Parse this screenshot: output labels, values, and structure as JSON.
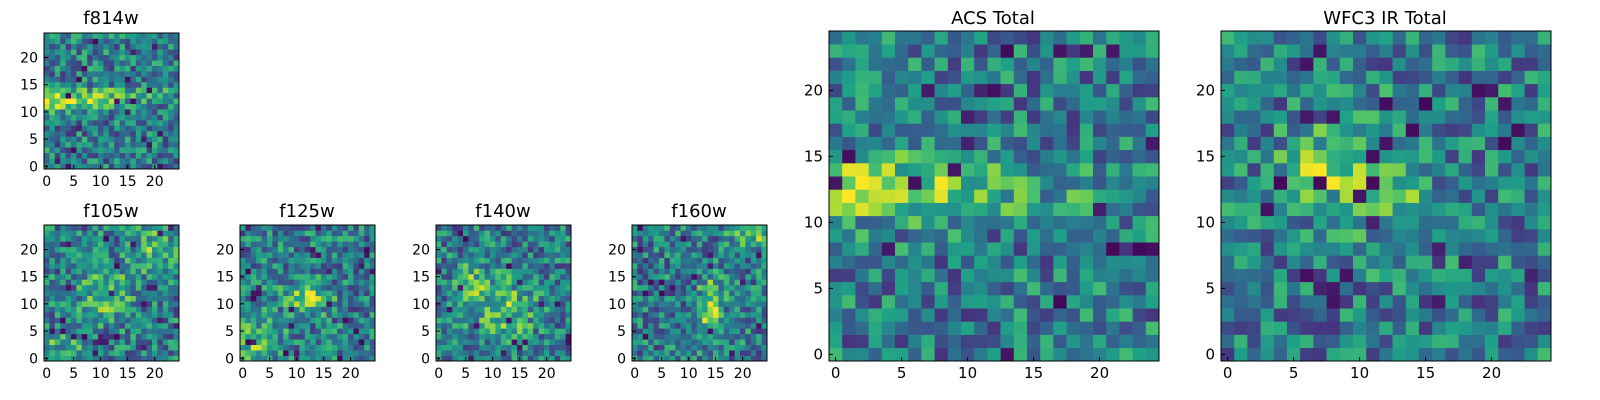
{
  "chart_data": [
    {
      "type": "heatmap",
      "title": "f814w",
      "grid_size": 25,
      "x_ticks": [
        0,
        5,
        10,
        15,
        20
      ],
      "y_ticks": [
        0,
        5,
        10,
        15,
        20
      ],
      "colormap": "viridis",
      "feature": "bright horizontal band around y=11-14, fading to the right; mottled noise elsewhere"
    },
    {
      "type": "heatmap",
      "title": "f105w",
      "grid_size": 25,
      "x_ticks": [
        0,
        5,
        10,
        15,
        20
      ],
      "y_ticks": [
        0,
        5,
        10,
        15,
        20
      ],
      "colormap": "viridis",
      "feature": "mottled noise, yellow patches around x=8-13, y=10-16; dark pixels near x=15-18, y=2-6"
    },
    {
      "type": "heatmap",
      "title": "f125w",
      "grid_size": 25,
      "x_ticks": [
        0,
        5,
        10,
        15,
        20
      ],
      "y_ticks": [
        0,
        5,
        10,
        15,
        20
      ],
      "colormap": "viridis",
      "feature": "mottled noise, yellow blobs around x=10-15, y=9-13 and lower-left"
    },
    {
      "type": "heatmap",
      "title": "f140w",
      "grid_size": 25,
      "x_ticks": [
        0,
        5,
        10,
        15,
        20
      ],
      "y_ticks": [
        0,
        5,
        10,
        15,
        20
      ],
      "colormap": "viridis",
      "feature": "mottled noise, yellow patches around x=8-16, y=5-15; dark pixels near x=15, y=3"
    },
    {
      "type": "heatmap",
      "title": "f160w",
      "grid_size": 25,
      "x_ticks": [
        0,
        5,
        10,
        15,
        20
      ],
      "y_ticks": [
        0,
        5,
        10,
        15,
        20
      ],
      "colormap": "viridis",
      "feature": "mottled noise, yellow vertical blob around x=13-14, y=6-13; yellow top-right"
    },
    {
      "type": "heatmap",
      "title": "ACS Total",
      "grid_size": 25,
      "x_ticks": [
        0,
        5,
        10,
        15,
        20
      ],
      "y_ticks": [
        0,
        5,
        10,
        15,
        20
      ],
      "colormap": "viridis",
      "feature": "bright yellow horizontal band around y=10-15 on the left half; scattered dark pixels"
    },
    {
      "type": "heatmap",
      "title": "WFC3 IR Total",
      "grid_size": 25,
      "x_ticks": [
        0,
        5,
        10,
        15,
        20
      ],
      "y_ticks": [
        0,
        5,
        10,
        15,
        20
      ],
      "colormap": "viridis",
      "feature": "yellow blobs around x=6-8 and x=11-13, y=10-16; scattered dark pixels"
    }
  ],
  "colors": {
    "viridis": [
      "#440154",
      "#46327e",
      "#365c8d",
      "#277f8e",
      "#1fa187",
      "#4ac16d",
      "#a0da39",
      "#fde725"
    ]
  }
}
